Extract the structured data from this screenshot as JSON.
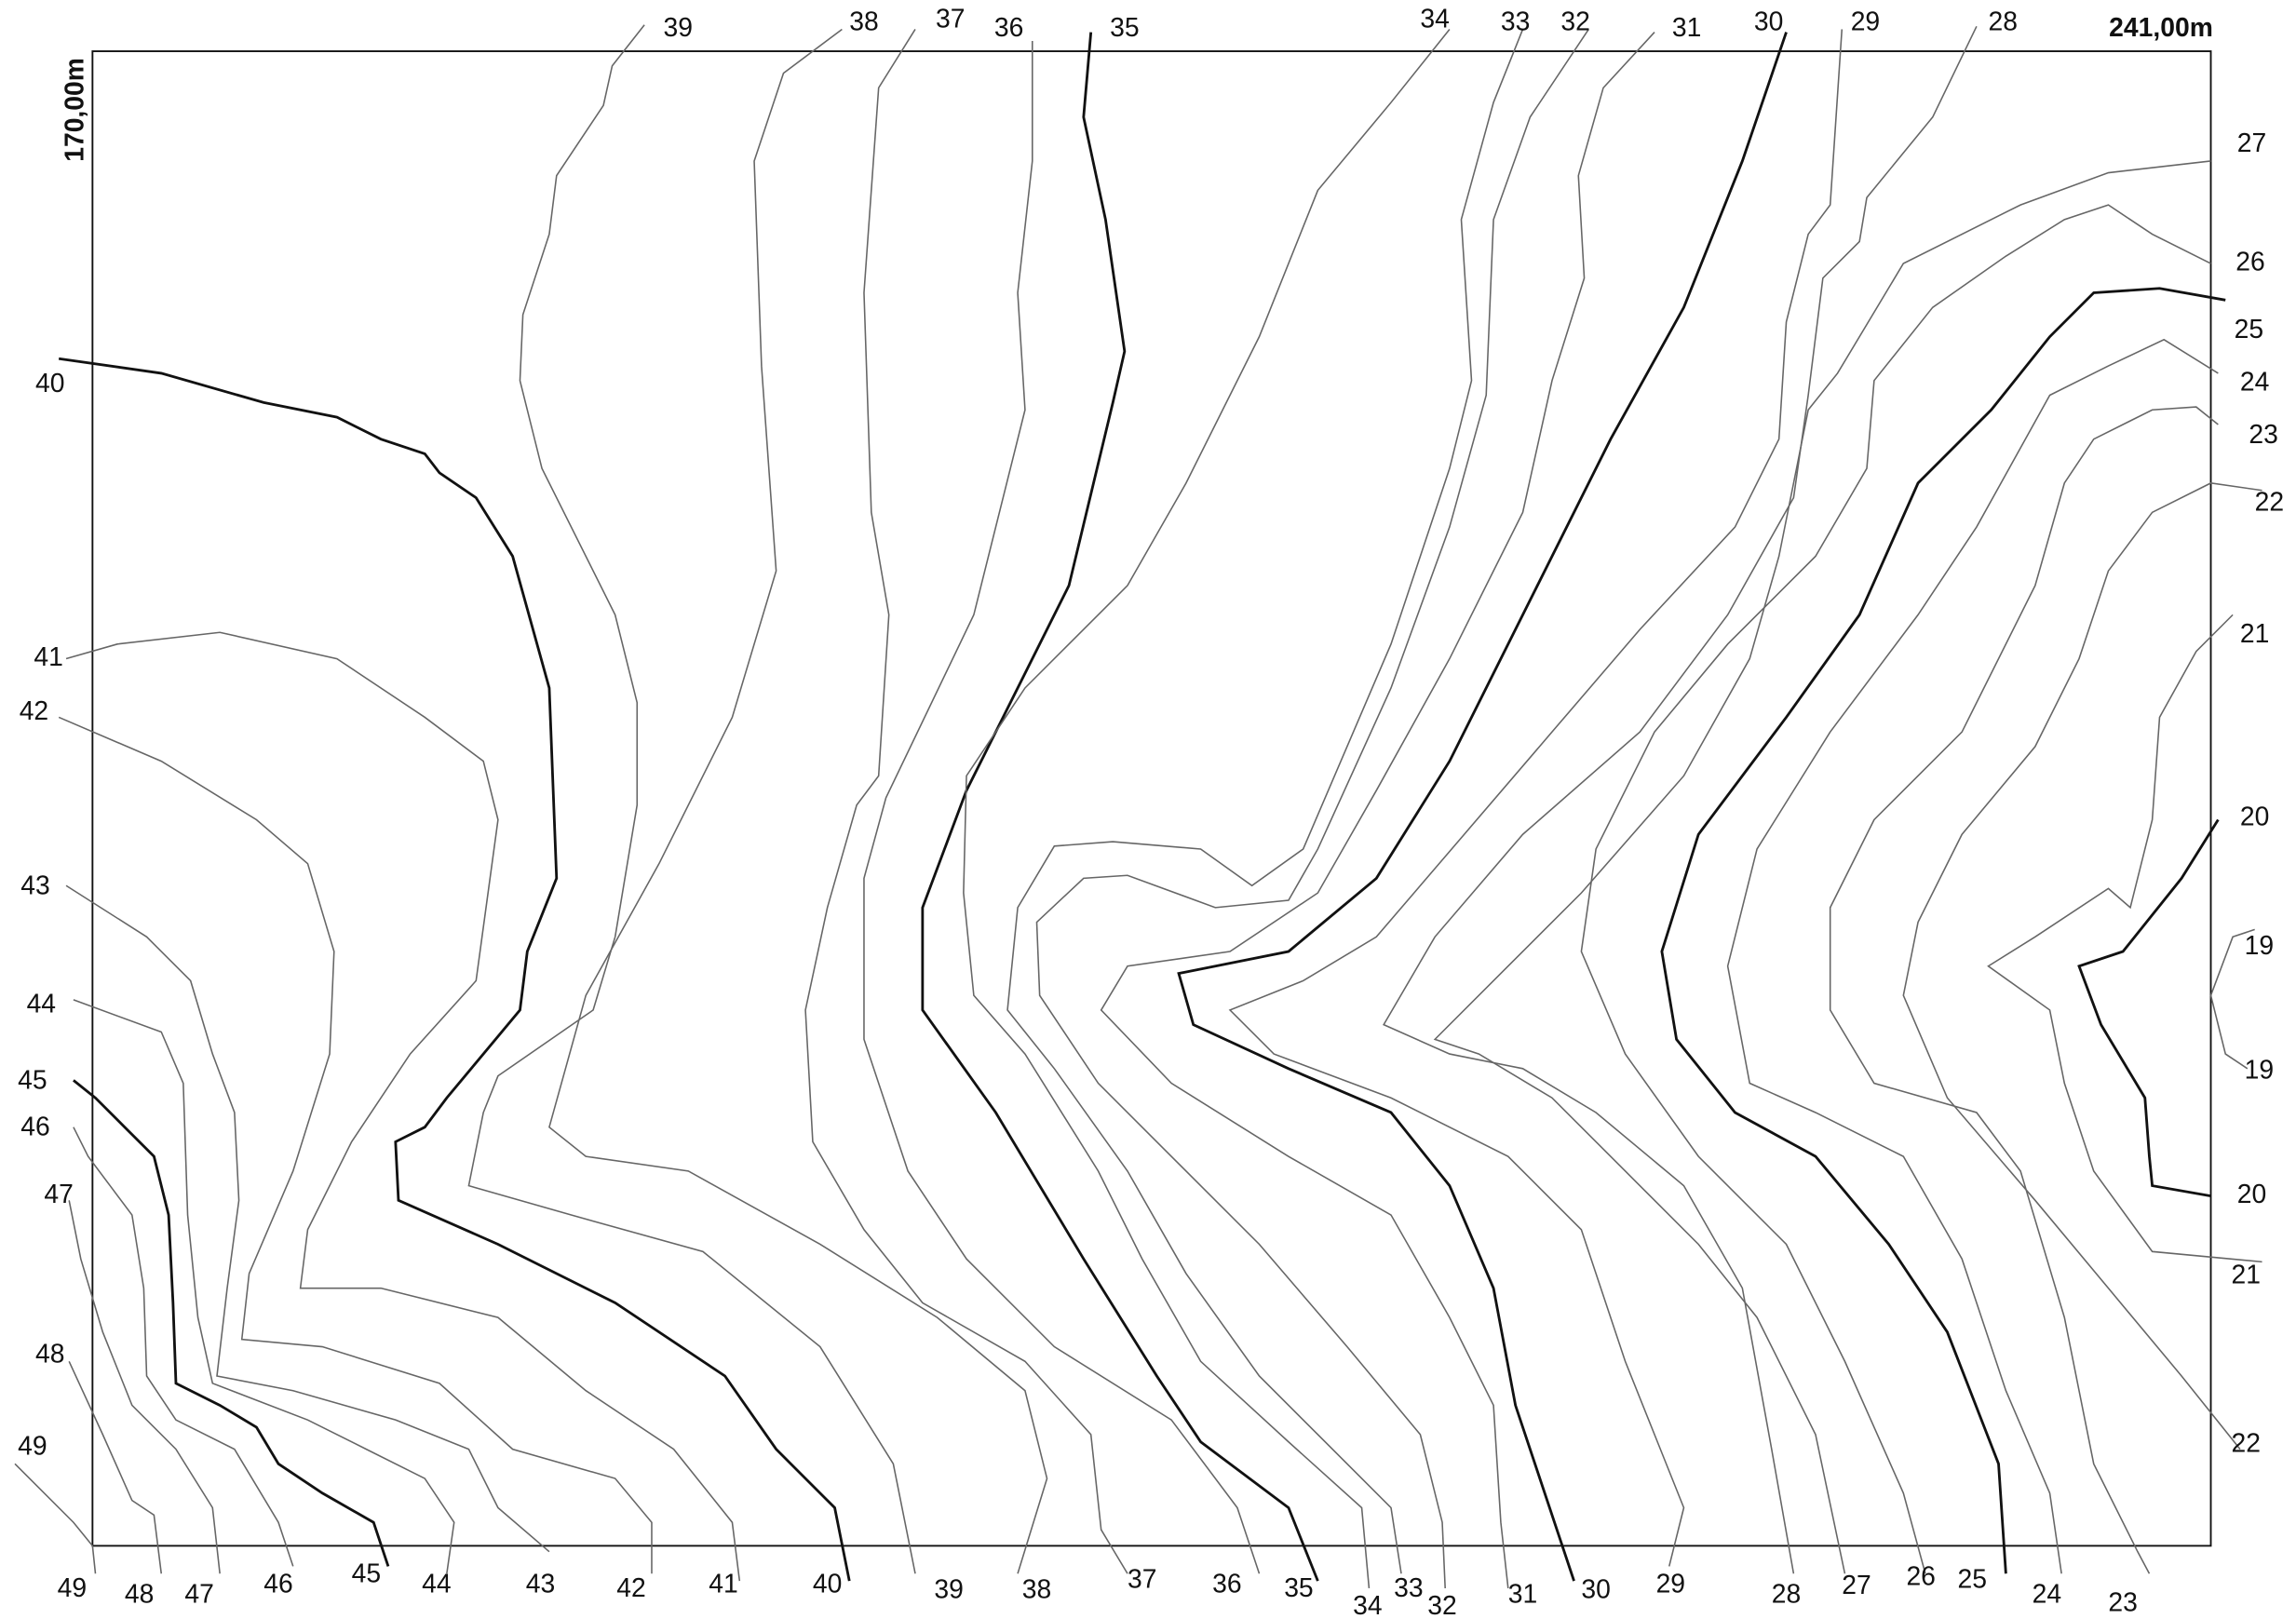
{
  "dimensions": {
    "width_label": "241,00m",
    "height_label": "170,00m"
  },
  "contour_labels": [
    "39",
    "38",
    "37",
    "36",
    "35",
    "34",
    "33",
    "32",
    "31",
    "30",
    "29",
    "28",
    "27",
    "26",
    "25",
    "24",
    "23",
    "22",
    "21",
    "20",
    "19",
    "19",
    "20",
    "21",
    "22",
    "40",
    "41",
    "42",
    "43",
    "44",
    "45",
    "46",
    "47",
    "48",
    "49",
    "49",
    "48",
    "47",
    "46",
    "45",
    "44",
    "43",
    "42",
    "41",
    "40",
    "39",
    "38",
    "37",
    "36",
    "35",
    "34",
    "33",
    "32",
    "31",
    "30",
    "29",
    "28",
    "27",
    "26",
    "25",
    "24",
    "23"
  ]
}
